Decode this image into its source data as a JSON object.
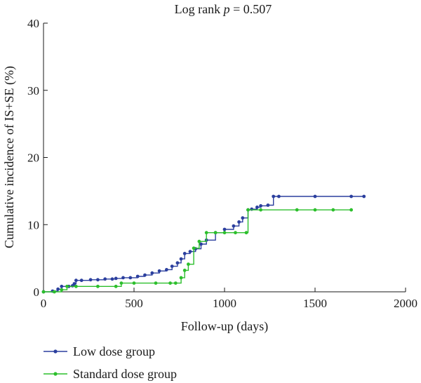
{
  "chart_data": {
    "type": "line",
    "title_prefix": "Log rank ",
    "title_p": "p",
    "title_suffix": " = 0.507",
    "xlabel": "Follow-up (days)",
    "ylabel": "Cumulative incidence of IS+SE (%)",
    "xlim": [
      0,
      2000
    ],
    "ylim": [
      0,
      40
    ],
    "xticks": [
      0,
      500,
      1000,
      1500,
      2000
    ],
    "yticks": [
      0,
      10,
      20,
      30,
      40
    ],
    "grid": false,
    "legend_position": "bottom-left",
    "series": [
      {
        "name": "Low dose group",
        "color": "#2b3f9e",
        "x": [
          0,
          50,
          80,
          100,
          140,
          160,
          170,
          180,
          210,
          260,
          300,
          340,
          380,
          400,
          440,
          480,
          520,
          560,
          600,
          640,
          680,
          710,
          740,
          760,
          780,
          810,
          840,
          870,
          900,
          950,
          1000,
          1050,
          1080,
          1100,
          1130,
          1150,
          1180,
          1200,
          1240,
          1270,
          1300,
          1500,
          1700,
          1770
        ],
        "y": [
          0,
          0.1,
          0.4,
          0.8,
          0.8,
          0.9,
          1.2,
          1.7,
          1.7,
          1.8,
          1.8,
          1.9,
          1.9,
          2.0,
          2.1,
          2.1,
          2.3,
          2.5,
          2.8,
          3.1,
          3.3,
          3.8,
          4.3,
          4.9,
          5.7,
          6.0,
          6.4,
          7.1,
          7.7,
          8.8,
          9.3,
          9.8,
          10.4,
          11.0,
          12.2,
          12.3,
          12.6,
          12.8,
          12.9,
          14.2,
          14.2,
          14.2,
          14.2,
          14.2
        ]
      },
      {
        "name": "Standard dose group",
        "color": "#2cbf2c",
        "x": [
          0,
          60,
          100,
          130,
          180,
          300,
          400,
          430,
          500,
          620,
          700,
          730,
          760,
          780,
          800,
          830,
          860,
          900,
          950,
          1000,
          1060,
          1120,
          1130,
          1200,
          1400,
          1500,
          1600,
          1700
        ],
        "y": [
          0,
          0,
          0.3,
          0.8,
          0.8,
          0.8,
          0.8,
          1.3,
          1.3,
          1.3,
          1.3,
          1.3,
          2.1,
          3.2,
          4.1,
          6.5,
          7.5,
          8.8,
          8.8,
          8.8,
          8.8,
          8.8,
          12.2,
          12.2,
          12.2,
          12.2,
          12.2,
          12.2
        ]
      }
    ]
  }
}
